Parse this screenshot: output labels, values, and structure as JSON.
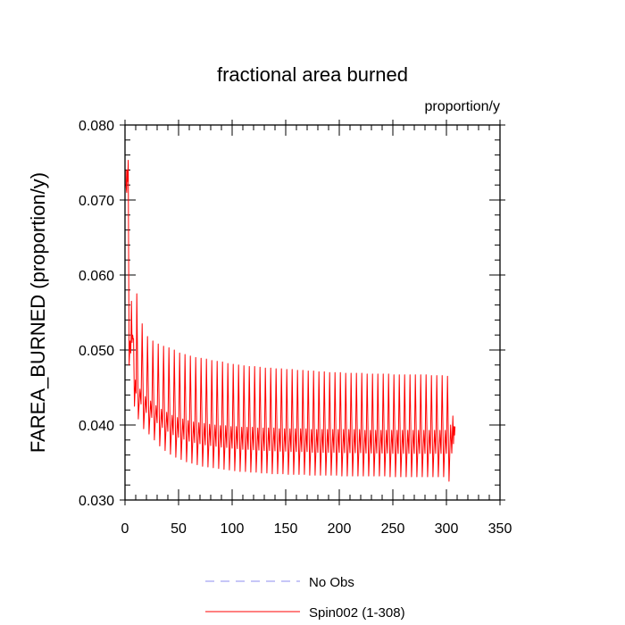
{
  "chart_data": {
    "type": "line",
    "title": "fractional area burned",
    "units_label": "proportion/y",
    "xlabel": "",
    "ylabel": "FAREA_BURNED  (proportion/y)",
    "xlim": [
      0,
      350
    ],
    "ylim": [
      0.03,
      0.08
    ],
    "x_ticks": [
      0,
      50,
      100,
      150,
      200,
      250,
      300,
      350
    ],
    "x_tick_labels": [
      "0",
      "50",
      "100",
      "150",
      "200",
      "250",
      "300",
      "350"
    ],
    "y_ticks": [
      0.03,
      0.04,
      0.05,
      0.06,
      0.07,
      0.08
    ],
    "y_tick_labels": [
      "0.030",
      "0.040",
      "0.050",
      "0.060",
      "0.070",
      "0.080"
    ],
    "grid": false,
    "legend_position": "bottom",
    "series": [
      {
        "name": "No Obs",
        "color": "#8c8cf0",
        "dash": true,
        "x": [],
        "y": []
      },
      {
        "name": "Spin002 (1-308)",
        "color": "#ff0000",
        "dash": false,
        "x_range": [
          1,
          308
        ],
        "cycle_length": 5,
        "cycle_peak_x": [
          1,
          3,
          6,
          8,
          11,
          16,
          21,
          26,
          31,
          36,
          41,
          46,
          51,
          56,
          61,
          66,
          71,
          76,
          81,
          86,
          91,
          96,
          101,
          106,
          111,
          116,
          121,
          126,
          131,
          136,
          141,
          146,
          151,
          156,
          161,
          166,
          171,
          176,
          181,
          186,
          191,
          196,
          201,
          206,
          211,
          216,
          221,
          226,
          231,
          236,
          241,
          246,
          251,
          256,
          261,
          266,
          271,
          276,
          281,
          286,
          291,
          296,
          301,
          306
        ],
        "cycle_peak_y": [
          0.0718,
          0.0753,
          0.0565,
          0.0515,
          0.0575,
          0.0535,
          0.0518,
          0.0512,
          0.0508,
          0.0505,
          0.0503,
          0.05,
          0.0496,
          0.0494,
          0.0492,
          0.049,
          0.0489,
          0.0488,
          0.0486,
          0.0485,
          0.0484,
          0.0482,
          0.0481,
          0.048,
          0.0479,
          0.0478,
          0.0478,
          0.0477,
          0.0476,
          0.0476,
          0.0475,
          0.0475,
          0.0474,
          0.0474,
          0.0473,
          0.0473,
          0.0472,
          0.0472,
          0.0471,
          0.0471,
          0.047,
          0.047,
          0.047,
          0.0469,
          0.0469,
          0.0469,
          0.0469,
          0.0468,
          0.0468,
          0.0468,
          0.0468,
          0.0468,
          0.0467,
          0.0467,
          0.0467,
          0.0467,
          0.0467,
          0.0467,
          0.0467,
          0.0466,
          0.0466,
          0.0466,
          0.0465,
          0.0412
        ],
        "cycle_trough_y": [
          0.071,
          0.048,
          0.051,
          0.0425,
          0.0408,
          0.0395,
          0.0388,
          0.038,
          0.0372,
          0.0366,
          0.0361,
          0.0357,
          0.0354,
          0.0351,
          0.0349,
          0.0347,
          0.0345,
          0.0344,
          0.0343,
          0.0342,
          0.0341,
          0.034,
          0.0339,
          0.0338,
          0.0338,
          0.0337,
          0.0337,
          0.0336,
          0.0336,
          0.0335,
          0.0335,
          0.0335,
          0.0334,
          0.0334,
          0.0334,
          0.0334,
          0.0333,
          0.0333,
          0.0333,
          0.0333,
          0.0333,
          0.0333,
          0.0332,
          0.0332,
          0.0332,
          0.0332,
          0.0332,
          0.0332,
          0.0332,
          0.0332,
          0.0332,
          0.0331,
          0.0331,
          0.0331,
          0.0331,
          0.0331,
          0.0331,
          0.0331,
          0.0331,
          0.0331,
          0.0331,
          0.0331,
          0.0325,
          0.0375
        ],
        "cycle_mid_y": [
          0.074,
          0.0512,
          0.052,
          0.046,
          0.0448,
          0.0438,
          0.0432,
          0.0426,
          0.0421,
          0.0417,
          0.0413,
          0.041,
          0.0408,
          0.0406,
          0.0404,
          0.0403,
          0.0402,
          0.0401,
          0.04,
          0.0399,
          0.0399,
          0.0398,
          0.0398,
          0.0397,
          0.0397,
          0.0397,
          0.0396,
          0.0396,
          0.0396,
          0.0396,
          0.0395,
          0.0395,
          0.0395,
          0.0395,
          0.0395,
          0.0395,
          0.0394,
          0.0394,
          0.0394,
          0.0394,
          0.0394,
          0.0394,
          0.0394,
          0.0394,
          0.0394,
          0.0394,
          0.0393,
          0.0393,
          0.0393,
          0.0393,
          0.0393,
          0.0393,
          0.0393,
          0.0393,
          0.0393,
          0.0393,
          0.0393,
          0.0393,
          0.0393,
          0.0393,
          0.0393,
          0.0393,
          0.04,
          0.0398
        ]
      }
    ]
  }
}
